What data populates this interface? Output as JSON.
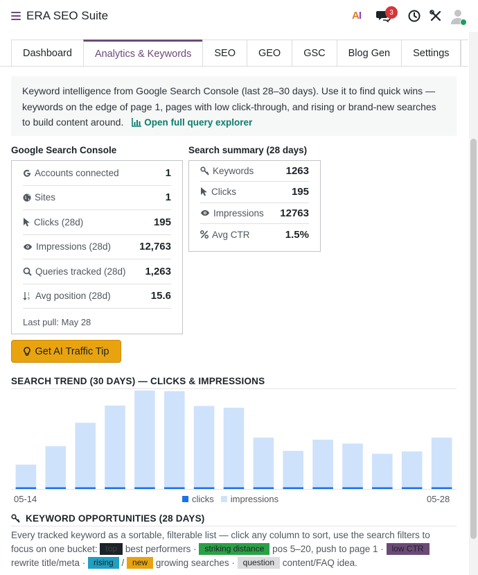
{
  "app": {
    "title": "ERA SEO Suite",
    "ai_label_a": "A",
    "ai_label_i": "I",
    "notification_count": "3"
  },
  "tabs": [
    {
      "label": "Dashboard"
    },
    {
      "label": "Analytics & Keywords",
      "active": true
    },
    {
      "label": "SEO"
    },
    {
      "label": "GEO"
    },
    {
      "label": "GSC"
    },
    {
      "label": "Blog Gen"
    },
    {
      "label": "Settings"
    }
  ],
  "intro": {
    "text": "Keyword intelligence from Google Search Console (last 28–30 days). Use it to find quick wins — keywords on the edge of page 1, pages with low click-through, and rising or brand-new searches to build content around.",
    "link": "Open full query explorer",
    "link_icon": "bar-chart-icon"
  },
  "gsc": {
    "title": "Google Search Console",
    "rows": [
      {
        "icon": "google-icon",
        "label": "Accounts connected",
        "value": "1"
      },
      {
        "icon": "globe-icon",
        "label": "Sites",
        "value": "1"
      },
      {
        "icon": "cursor-icon",
        "label": "Clicks (28d)",
        "value": "195"
      },
      {
        "icon": "eye-icon",
        "label": "Impressions (28d)",
        "value": "12,763"
      },
      {
        "icon": "search-icon",
        "label": "Queries tracked (28d)",
        "value": "1,263"
      },
      {
        "icon": "sort-icon",
        "label": "Avg position (28d)",
        "value": "15.6"
      }
    ],
    "last_pull": "Last pull: May 28"
  },
  "summary": {
    "title": "Search summary (28 days)",
    "rows": [
      {
        "icon": "key-icon",
        "label": "Keywords",
        "value": "1263"
      },
      {
        "icon": "cursor-icon",
        "label": "Clicks",
        "value": "195"
      },
      {
        "icon": "eye-icon",
        "label": "Impressions",
        "value": "12763"
      },
      {
        "icon": "percent-icon",
        "label": "Avg CTR",
        "value": "1.5%"
      }
    ]
  },
  "tip_button": {
    "label": "Get AI Traffic Tip",
    "icon": "lightbulb-icon"
  },
  "trend": {
    "title": "SEARCH TREND (30 DAYS) — CLICKS & IMPRESSIONS"
  },
  "chart_data": {
    "type": "bar",
    "title": "SEARCH TREND (30 DAYS) — CLICKS & IMPRESSIONS",
    "x_first": "05-14",
    "x_last": "05-28",
    "colors": {
      "clicks": "#1a73e8",
      "impressions": "#cfe2fb"
    },
    "series": [
      {
        "name": "clicks",
        "values": [
          3,
          3,
          4,
          3,
          3,
          4,
          3,
          3,
          3,
          3,
          3,
          3,
          3,
          3,
          3
        ]
      },
      {
        "name": "impressions",
        "values": [
          347,
          608,
          942,
          1186,
          1400,
          1389,
          1180,
          1155,
          731,
          541,
          701,
          646,
          501,
          534,
          731
        ]
      }
    ],
    "legend": "bottom-center",
    "grid": false
  },
  "keywords": {
    "title": "KEYWORD OPPORTUNITIES (28 DAYS)",
    "icon": "key-icon",
    "desc_1": "Every tracked keyword as a sortable, filterable list — click any column to sort, use the search filters to focus on one bucket:",
    "tag_top": "top",
    "desc_2": "best performers ·",
    "tag_striking": "striking distance",
    "desc_3": "pos 5–20, push to page 1 ·",
    "tag_lowctr": "low CTR",
    "desc_4": "rewrite title/meta ·",
    "tag_rising": "rising",
    "desc_5": "/",
    "tag_new": "new",
    "desc_6": "growing searches ·",
    "tag_question": "question",
    "desc_7": "content/FAQ idea."
  }
}
